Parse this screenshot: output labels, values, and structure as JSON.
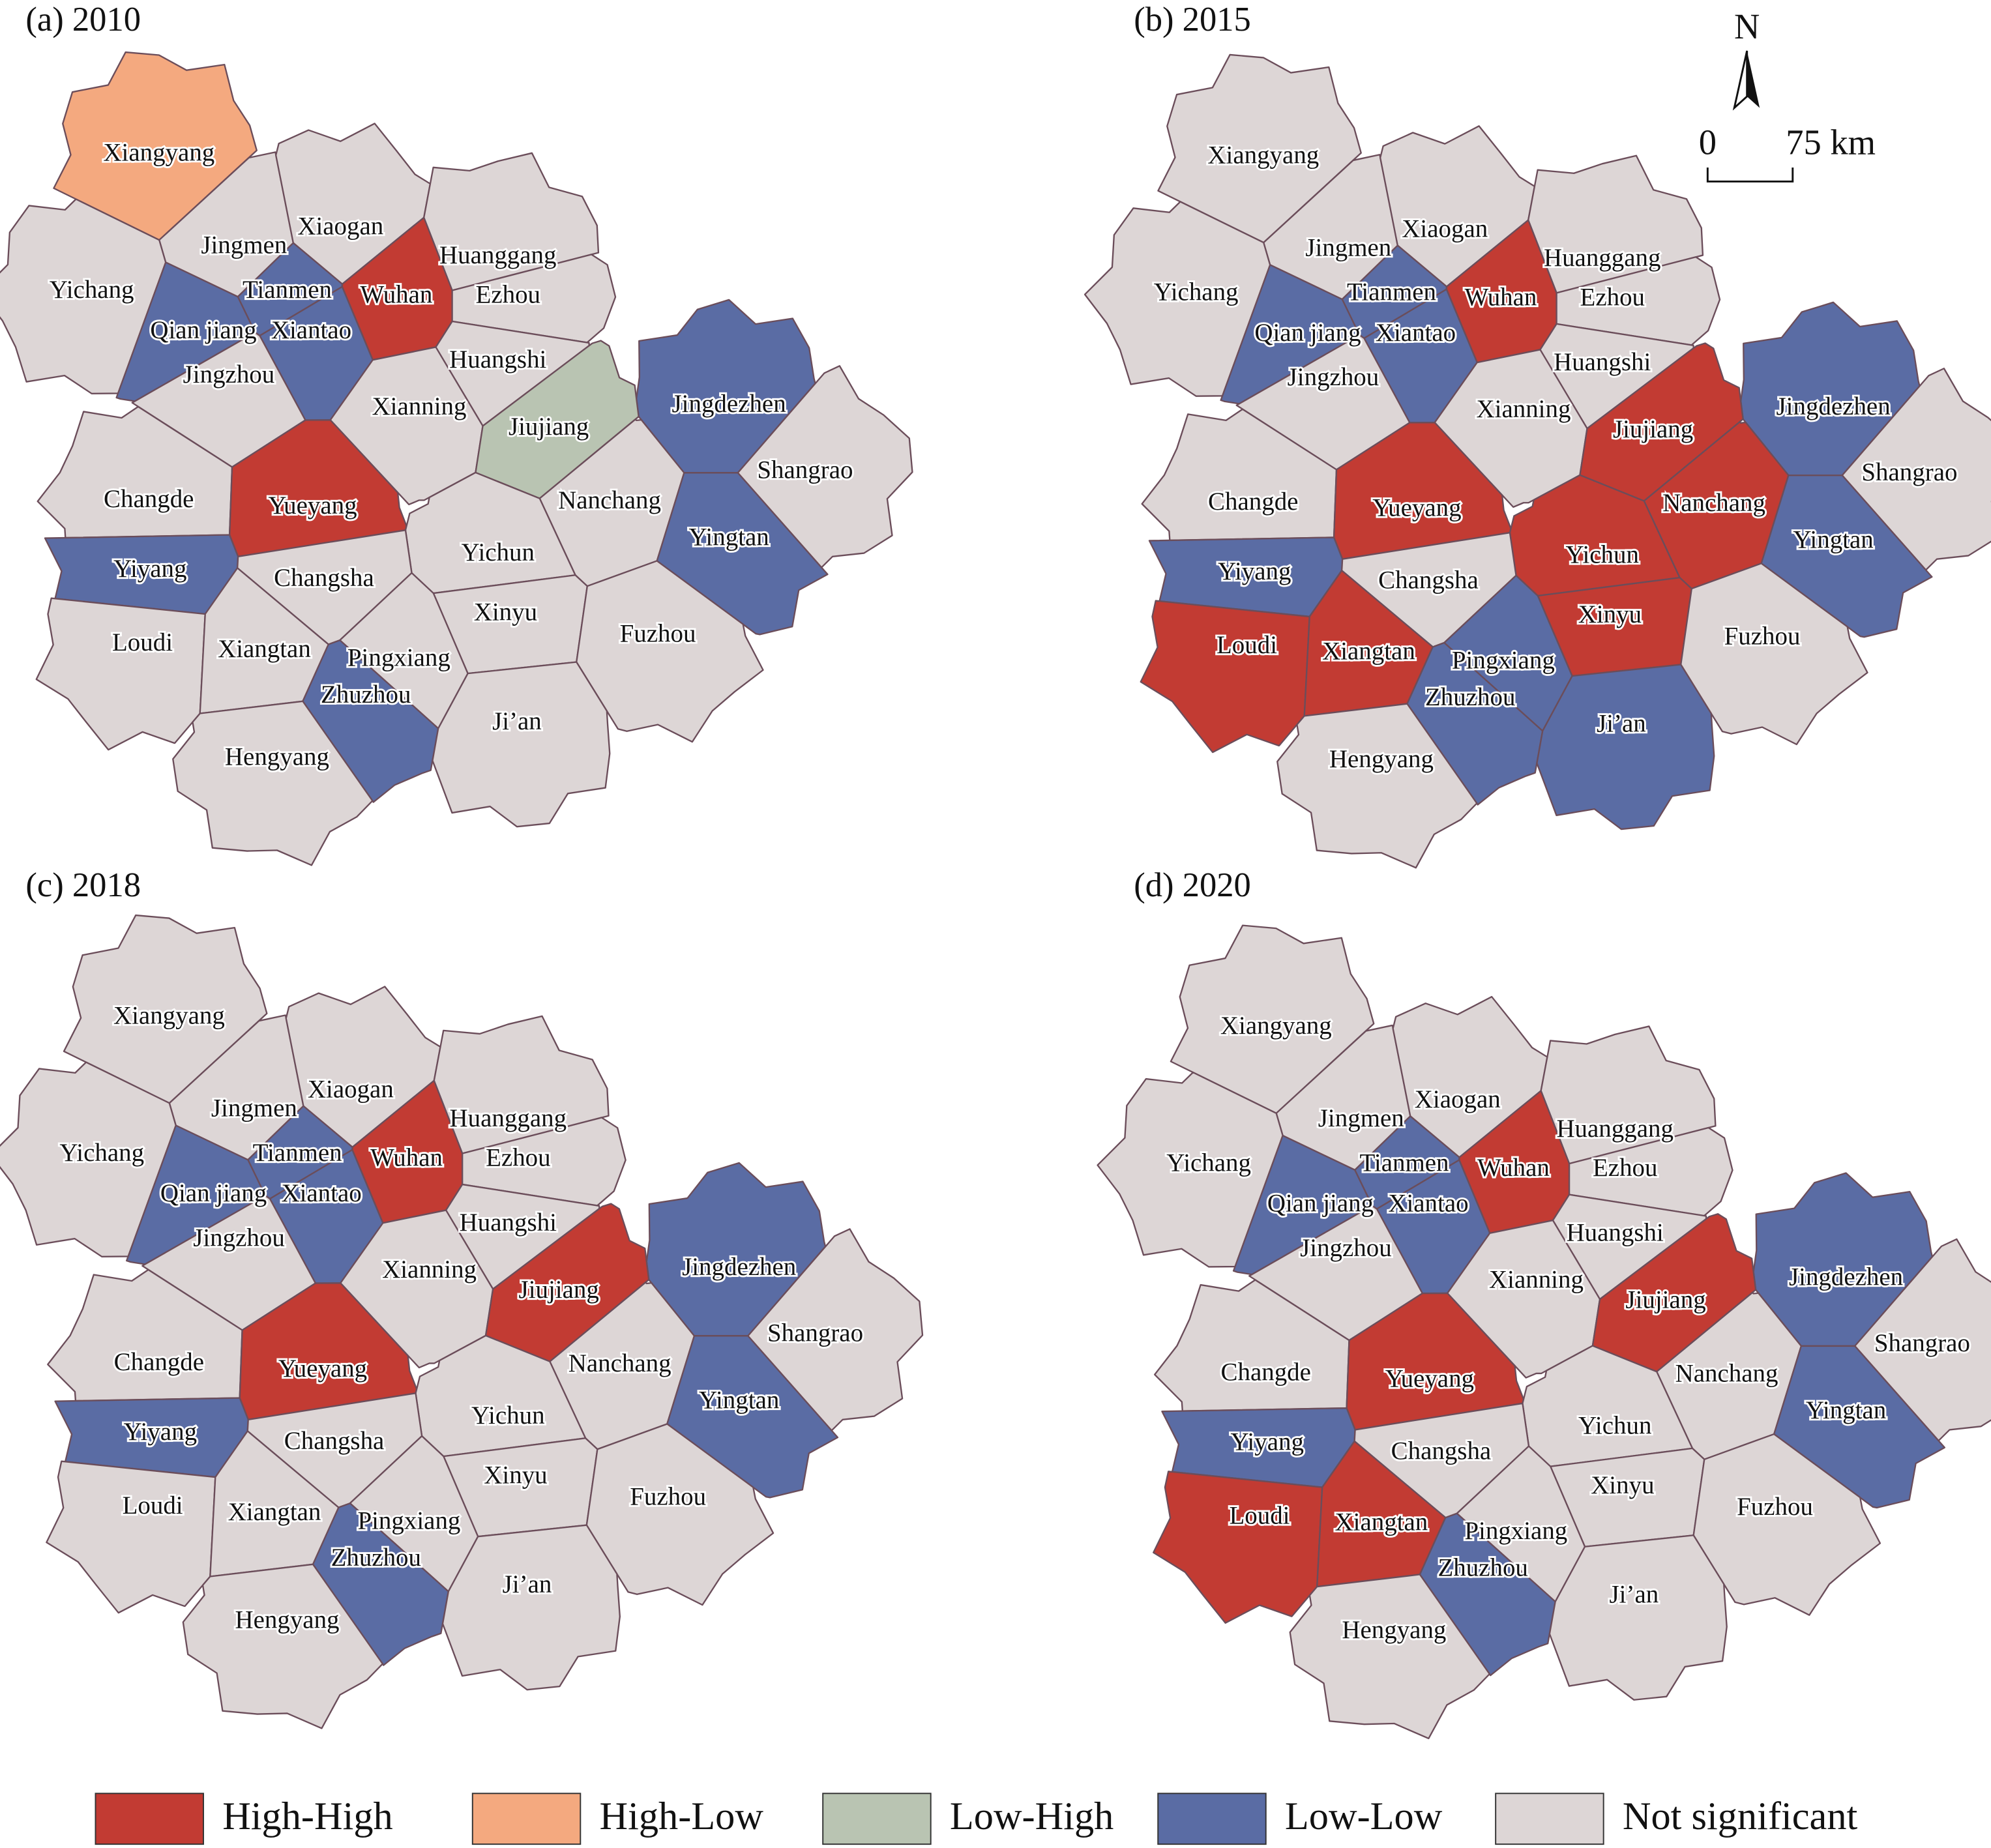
{
  "panels": [
    {
      "title": "(a) 2010",
      "regions": [
        {
          "name": "Xiangyang",
          "class": "High-Low"
        },
        {
          "name": "Jingmen",
          "class": "Not significant"
        },
        {
          "name": "Xiaogan",
          "class": "Not significant"
        },
        {
          "name": "Huanggang",
          "class": "Not significant"
        },
        {
          "name": "Yichang",
          "class": "Not significant"
        },
        {
          "name": "Tianmen",
          "class": "Low-Low"
        },
        {
          "name": "Wuhan",
          "class": "High-High"
        },
        {
          "name": "Ezhou",
          "class": "Not significant"
        },
        {
          "name": "Qian jiang",
          "class": "Low-Low"
        },
        {
          "name": "Xiantao",
          "class": "Low-Low"
        },
        {
          "name": "Huangshi",
          "class": "Not significant"
        },
        {
          "name": "Jingzhou",
          "class": "Not significant"
        },
        {
          "name": "Jingdezhen",
          "class": "Low-Low"
        },
        {
          "name": "Xianning",
          "class": "Not significant"
        },
        {
          "name": "Jiujiang",
          "class": "Low-High"
        },
        {
          "name": "Shangrao",
          "class": "Not significant"
        },
        {
          "name": "Changde",
          "class": "Not significant"
        },
        {
          "name": "Yueyang",
          "class": "High-High"
        },
        {
          "name": "Nanchang",
          "class": "Not significant"
        },
        {
          "name": "Yingtan",
          "class": "Low-Low"
        },
        {
          "name": "Yiyang",
          "class": "Low-Low"
        },
        {
          "name": "Yichun",
          "class": "Not significant"
        },
        {
          "name": "Changsha",
          "class": "Not significant"
        },
        {
          "name": "Xinyu",
          "class": "Not significant"
        },
        {
          "name": "Fuzhou",
          "class": "Not significant"
        },
        {
          "name": "Loudi",
          "class": "Not significant"
        },
        {
          "name": "Xiangtan",
          "class": "Not significant"
        },
        {
          "name": "Pingxiang",
          "class": "Not significant"
        },
        {
          "name": "Zhuzhou",
          "class": "Low-Low"
        },
        {
          "name": "Ji’an",
          "class": "Not significant"
        },
        {
          "name": "Hengyang",
          "class": "Not significant"
        }
      ]
    },
    {
      "title": "(b) 2015",
      "regions": [
        {
          "name": "Xiangyang",
          "class": "Not significant"
        },
        {
          "name": "Jingmen",
          "class": "Not significant"
        },
        {
          "name": "Xiaogan",
          "class": "Not significant"
        },
        {
          "name": "Huanggang",
          "class": "Not significant"
        },
        {
          "name": "Yichang",
          "class": "Not significant"
        },
        {
          "name": "Tianmen",
          "class": "Low-Low"
        },
        {
          "name": "Wuhan",
          "class": "High-High"
        },
        {
          "name": "Ezhou",
          "class": "Not significant"
        },
        {
          "name": "Qian jiang",
          "class": "Low-Low"
        },
        {
          "name": "Xiantao",
          "class": "Low-Low"
        },
        {
          "name": "Huangshi",
          "class": "Not significant"
        },
        {
          "name": "Jingzhou",
          "class": "Not significant"
        },
        {
          "name": "Jingdezhen",
          "class": "Low-Low"
        },
        {
          "name": "Xianning",
          "class": "Not significant"
        },
        {
          "name": "Jiujiang",
          "class": "High-High"
        },
        {
          "name": "Shangrao",
          "class": "Not significant"
        },
        {
          "name": "Changde",
          "class": "Not significant"
        },
        {
          "name": "Yueyang",
          "class": "High-High"
        },
        {
          "name": "Nanchang",
          "class": "High-High"
        },
        {
          "name": "Yingtan",
          "class": "Low-Low"
        },
        {
          "name": "Yiyang",
          "class": "Low-Low"
        },
        {
          "name": "Yichun",
          "class": "High-High"
        },
        {
          "name": "Changsha",
          "class": "Not significant"
        },
        {
          "name": "Xinyu",
          "class": "High-High"
        },
        {
          "name": "Fuzhou",
          "class": "Not significant"
        },
        {
          "name": "Loudi",
          "class": "High-High"
        },
        {
          "name": "Xiangtan",
          "class": "High-High"
        },
        {
          "name": "Pingxiang",
          "class": "Low-Low"
        },
        {
          "name": "Zhuzhou",
          "class": "Low-Low"
        },
        {
          "name": "Ji’an",
          "class": "Low-Low"
        },
        {
          "name": "Hengyang",
          "class": "Not significant"
        }
      ]
    },
    {
      "title": "(c) 2018",
      "regions": [
        {
          "name": "Xiangyang",
          "class": "Not significant"
        },
        {
          "name": "Jingmen",
          "class": "Not significant"
        },
        {
          "name": "Xiaogan",
          "class": "Not significant"
        },
        {
          "name": "Huanggang",
          "class": "Not significant"
        },
        {
          "name": "Yichang",
          "class": "Not significant"
        },
        {
          "name": "Tianmen",
          "class": "Low-Low"
        },
        {
          "name": "Wuhan",
          "class": "High-High"
        },
        {
          "name": "Ezhou",
          "class": "Not significant"
        },
        {
          "name": "Qian jiang",
          "class": "Low-Low"
        },
        {
          "name": "Xiantao",
          "class": "Low-Low"
        },
        {
          "name": "Huangshi",
          "class": "Not significant"
        },
        {
          "name": "Jingzhou",
          "class": "Not significant"
        },
        {
          "name": "Jingdezhen",
          "class": "Low-Low"
        },
        {
          "name": "Xianning",
          "class": "Not significant"
        },
        {
          "name": "Jiujiang",
          "class": "High-High"
        },
        {
          "name": "Shangrao",
          "class": "Not significant"
        },
        {
          "name": "Changde",
          "class": "Not significant"
        },
        {
          "name": "Yueyang",
          "class": "High-High"
        },
        {
          "name": "Nanchang",
          "class": "Not significant"
        },
        {
          "name": "Yingtan",
          "class": "Low-Low"
        },
        {
          "name": "Yiyang",
          "class": "Low-Low"
        },
        {
          "name": "Yichun",
          "class": "Not significant"
        },
        {
          "name": "Changsha",
          "class": "Not significant"
        },
        {
          "name": "Xinyu",
          "class": "Not significant"
        },
        {
          "name": "Fuzhou",
          "class": "Not significant"
        },
        {
          "name": "Loudi",
          "class": "Not significant"
        },
        {
          "name": "Xiangtan",
          "class": "Not significant"
        },
        {
          "name": "Pingxiang",
          "class": "Not significant"
        },
        {
          "name": "Zhuzhou",
          "class": "Low-Low"
        },
        {
          "name": "Ji’an",
          "class": "Not significant"
        },
        {
          "name": "Hengyang",
          "class": "Not significant"
        }
      ]
    },
    {
      "title": "(d) 2020",
      "regions": [
        {
          "name": "Xiangyang",
          "class": "Not significant"
        },
        {
          "name": "Jingmen",
          "class": "Not significant"
        },
        {
          "name": "Xiaogan",
          "class": "Not significant"
        },
        {
          "name": "Huanggang",
          "class": "Not significant"
        },
        {
          "name": "Yichang",
          "class": "Not significant"
        },
        {
          "name": "Tianmen",
          "class": "Low-Low"
        },
        {
          "name": "Wuhan",
          "class": "High-High"
        },
        {
          "name": "Ezhou",
          "class": "Not significant"
        },
        {
          "name": "Qian jiang",
          "class": "Low-Low"
        },
        {
          "name": "Xiantao",
          "class": "Low-Low"
        },
        {
          "name": "Huangshi",
          "class": "Not significant"
        },
        {
          "name": "Jingzhou",
          "class": "Not significant"
        },
        {
          "name": "Jingdezhen",
          "class": "Low-Low"
        },
        {
          "name": "Xianning",
          "class": "Not significant"
        },
        {
          "name": "Jiujiang",
          "class": "High-High"
        },
        {
          "name": "Shangrao",
          "class": "Not significant"
        },
        {
          "name": "Changde",
          "class": "Not significant"
        },
        {
          "name": "Yueyang",
          "class": "High-High"
        },
        {
          "name": "Nanchang",
          "class": "Not significant"
        },
        {
          "name": "Yingtan",
          "class": "Low-Low"
        },
        {
          "name": "Yiyang",
          "class": "Low-Low"
        },
        {
          "name": "Yichun",
          "class": "Not significant"
        },
        {
          "name": "Changsha",
          "class": "Not significant"
        },
        {
          "name": "Xinyu",
          "class": "Not significant"
        },
        {
          "name": "Fuzhou",
          "class": "Not significant"
        },
        {
          "name": "Loudi",
          "class": "High-High"
        },
        {
          "name": "Xiangtan",
          "class": "High-High"
        },
        {
          "name": "Pingxiang",
          "class": "Not significant"
        },
        {
          "name": "Zhuzhou",
          "class": "Low-Low"
        },
        {
          "name": "Ji’an",
          "class": "Not significant"
        },
        {
          "name": "Hengyang",
          "class": "Not significant"
        }
      ]
    }
  ],
  "legend": [
    {
      "label": "High-High",
      "color": "#c23b33"
    },
    {
      "label": "High-Low",
      "color": "#f4a97f"
    },
    {
      "label": "Low-High",
      "color": "#b9c4b2"
    },
    {
      "label": "Low-Low",
      "color": "#5a6ca4"
    },
    {
      "label": "Not significant",
      "color": "#ddd6d6"
    }
  ],
  "north": "N",
  "scale": {
    "start": "0",
    "end": "75 km"
  }
}
